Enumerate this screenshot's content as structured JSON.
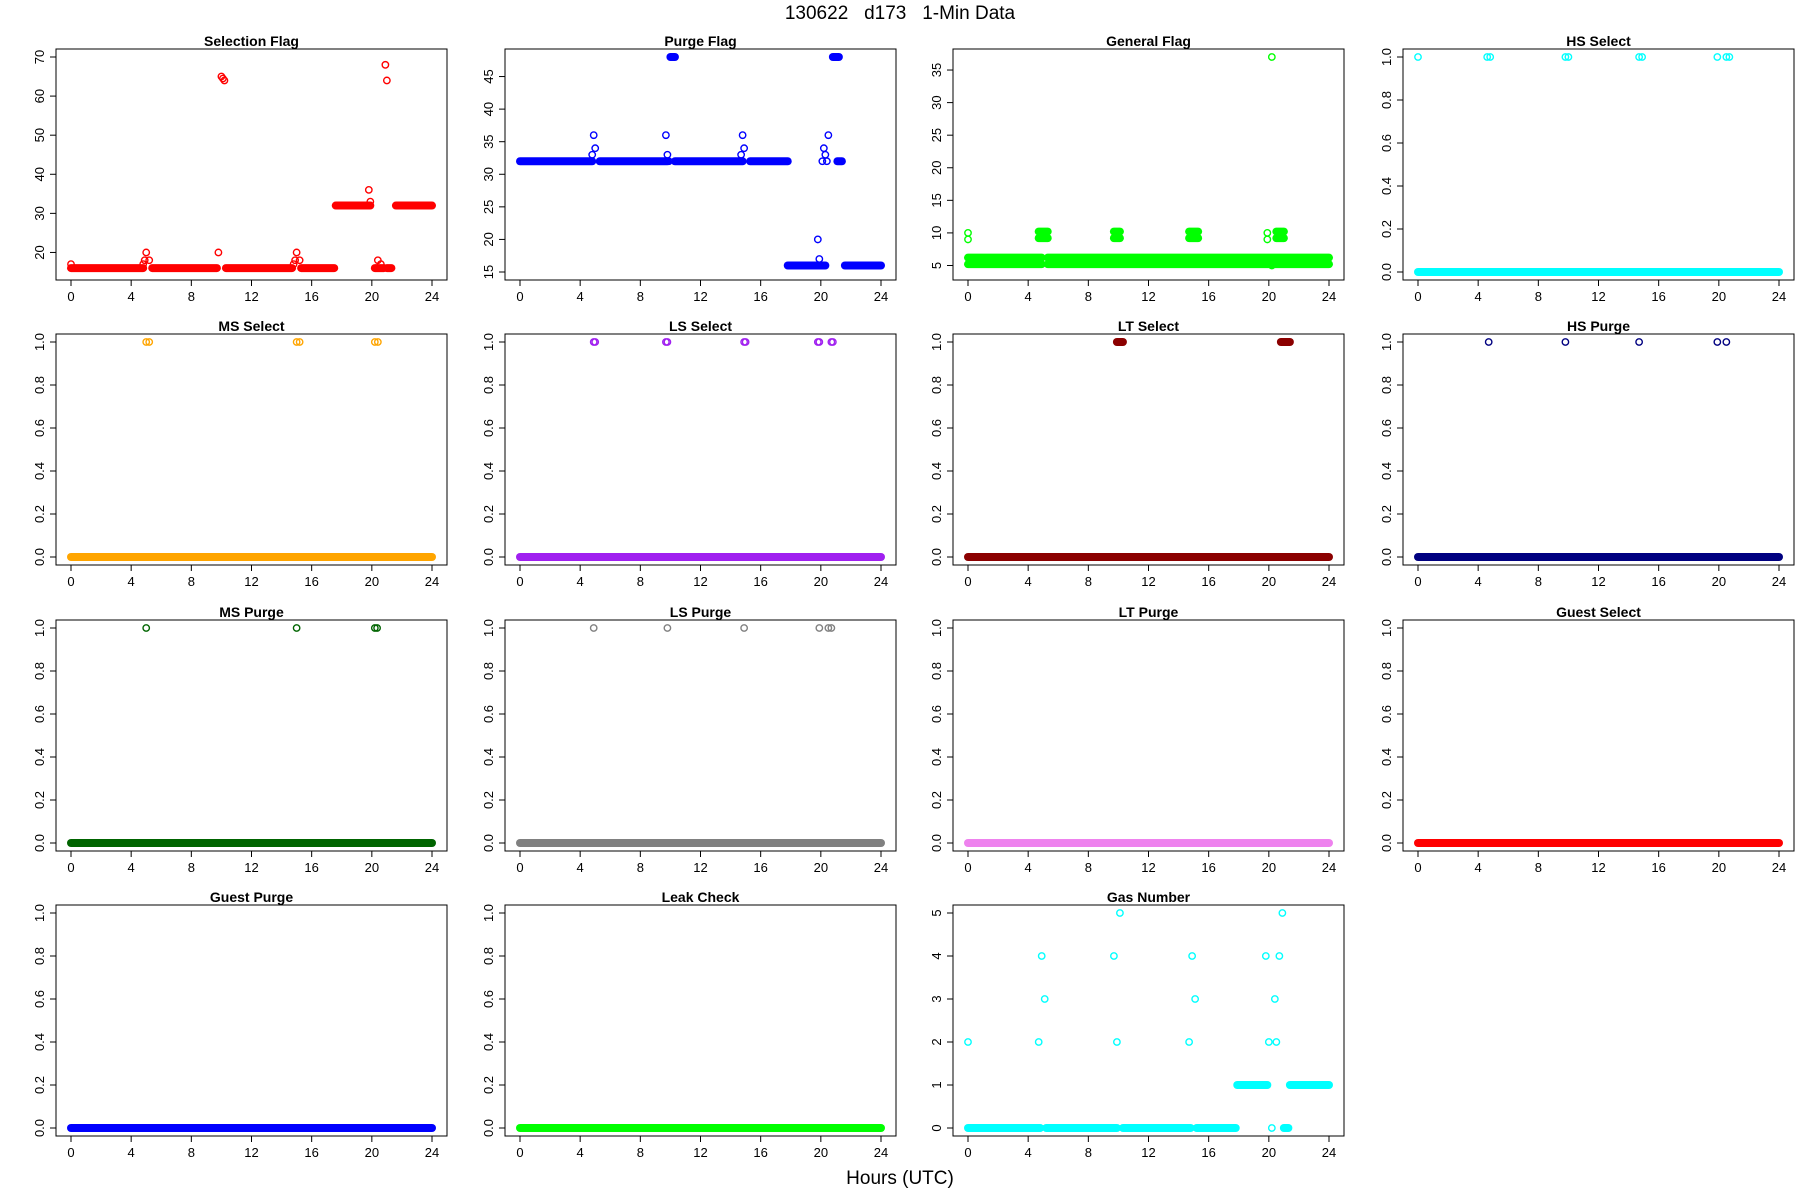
{
  "page": {
    "title": "130622   d173   1-Min Data",
    "xlabel": "Hours (UTC)"
  },
  "chart_data": [
    {
      "type": "scatter",
      "title": "Selection Flag",
      "color": "#ff0000",
      "xlim": [
        0,
        24
      ],
      "xticks": [
        0,
        4,
        8,
        12,
        16,
        20,
        24
      ],
      "ylim": [
        15,
        70
      ],
      "yticks": [
        20,
        30,
        40,
        50,
        60,
        70
      ],
      "baseline": [
        [
          0,
          4.8,
          16
        ],
        [
          5.4,
          9.7,
          16
        ],
        [
          10.3,
          14.7,
          16
        ],
        [
          15.3,
          17.5,
          16
        ],
        [
          17.6,
          19.9,
          32
        ],
        [
          20.2,
          20.8,
          16
        ],
        [
          21.0,
          21.3,
          16
        ],
        [
          21.6,
          24,
          32
        ]
      ],
      "points": [
        [
          0,
          17
        ],
        [
          4.8,
          17
        ],
        [
          4.9,
          18
        ],
        [
          5.0,
          20
        ],
        [
          5.2,
          18
        ],
        [
          9.8,
          20
        ],
        [
          10.0,
          65
        ],
        [
          10.1,
          64.5
        ],
        [
          10.2,
          64
        ],
        [
          14.8,
          17
        ],
        [
          14.9,
          18
        ],
        [
          15.0,
          20
        ],
        [
          15.2,
          18
        ],
        [
          19.8,
          36
        ],
        [
          19.9,
          33
        ],
        [
          20.3,
          16
        ],
        [
          20.4,
          18
        ],
        [
          20.6,
          17
        ],
        [
          20.9,
          68
        ],
        [
          21.0,
          64
        ]
      ]
    },
    {
      "type": "scatter",
      "title": "Purge Flag",
      "color": "#0000ff",
      "xlim": [
        0,
        24
      ],
      "xticks": [
        0,
        4,
        8,
        12,
        16,
        20,
        24
      ],
      "ylim": [
        15,
        48
      ],
      "yticks": [
        15,
        20,
        25,
        30,
        35,
        40,
        45
      ],
      "baseline": [
        [
          0,
          4.8,
          32
        ],
        [
          5.3,
          9.8,
          32
        ],
        [
          10.3,
          14.8,
          32
        ],
        [
          15.3,
          17.8,
          32
        ],
        [
          17.8,
          19.6,
          16
        ],
        [
          19.6,
          20.3,
          16
        ],
        [
          21.1,
          21.4,
          32
        ],
        [
          21.6,
          24,
          16
        ],
        [
          10.0,
          10.3,
          48
        ],
        [
          20.8,
          21.2,
          48
        ]
      ],
      "points": [
        [
          4.8,
          33
        ],
        [
          4.9,
          36
        ],
        [
          5.0,
          34
        ],
        [
          9.7,
          36
        ],
        [
          9.8,
          33
        ],
        [
          9.9,
          32
        ],
        [
          14.7,
          33
        ],
        [
          14.8,
          36
        ],
        [
          14.9,
          34
        ],
        [
          19.8,
          20
        ],
        [
          19.9,
          17
        ],
        [
          20.1,
          32
        ],
        [
          20.2,
          34
        ],
        [
          20.3,
          33
        ],
        [
          20.5,
          36
        ],
        [
          20.4,
          32
        ]
      ]
    },
    {
      "type": "scatter",
      "title": "General Flag",
      "color": "#00ff00",
      "xlim": [
        0,
        24
      ],
      "xticks": [
        0,
        4,
        8,
        12,
        16,
        20,
        24
      ],
      "ylim": [
        4,
        37
      ],
      "yticks": [
        5,
        10,
        15,
        20,
        25,
        30,
        35
      ],
      "baseline": [
        [
          0,
          4.9,
          5.2
        ],
        [
          0,
          4.9,
          6.2
        ],
        [
          5.3,
          24,
          5.2
        ],
        [
          5.3,
          24,
          6.2
        ]
      ],
      "clusters": [
        [
          4.7,
          5.3,
          9.2
        ],
        [
          4.7,
          5.3,
          10.2
        ],
        [
          9.7,
          10.1,
          9.2
        ],
        [
          9.7,
          10.1,
          10.2
        ],
        [
          14.7,
          15.3,
          9.2
        ],
        [
          14.7,
          15.3,
          10.2
        ],
        [
          20.5,
          21.0,
          9.2
        ],
        [
          20.5,
          21.0,
          10.2
        ]
      ],
      "points": [
        [
          0,
          10
        ],
        [
          0,
          9
        ],
        [
          19.9,
          10
        ],
        [
          19.9,
          9
        ],
        [
          20.2,
          37
        ],
        [
          20.2,
          6
        ],
        [
          20.2,
          5
        ]
      ]
    },
    {
      "type": "scatter",
      "title": "HS Select",
      "color": "#00ffff",
      "xlim": [
        0,
        24
      ],
      "xticks": [
        0,
        4,
        8,
        12,
        16,
        20,
        24
      ],
      "ylim": [
        0,
        1
      ],
      "yticks": [
        0.0,
        0.2,
        0.4,
        0.6,
        0.8,
        1.0
      ],
      "baseline": [
        [
          0,
          24,
          0
        ]
      ],
      "points": [
        [
          0,
          1
        ],
        [
          4.6,
          1
        ],
        [
          4.8,
          1
        ],
        [
          9.8,
          1
        ],
        [
          10.0,
          1
        ],
        [
          14.7,
          1
        ],
        [
          14.9,
          1
        ],
        [
          19.9,
          1
        ],
        [
          20.5,
          1
        ],
        [
          20.7,
          1
        ]
      ]
    },
    {
      "type": "scatter",
      "title": "MS Select",
      "color": "#ffa500",
      "xlim": [
        0,
        24
      ],
      "xticks": [
        0,
        4,
        8,
        12,
        16,
        20,
        24
      ],
      "ylim": [
        0,
        1
      ],
      "yticks": [
        0.0,
        0.2,
        0.4,
        0.6,
        0.8,
        1.0
      ],
      "baseline": [
        [
          0,
          24,
          0
        ]
      ],
      "points": [
        [
          5.0,
          1
        ],
        [
          5.2,
          1
        ],
        [
          15.0,
          1
        ],
        [
          15.2,
          1
        ],
        [
          20.2,
          1
        ],
        [
          20.4,
          1
        ]
      ]
    },
    {
      "type": "scatter",
      "title": "LS Select",
      "color": "#a020f0",
      "xlim": [
        0,
        24
      ],
      "xticks": [
        0,
        4,
        8,
        12,
        16,
        20,
        24
      ],
      "ylim": [
        0,
        1
      ],
      "yticks": [
        0.0,
        0.2,
        0.4,
        0.6,
        0.8,
        1.0
      ],
      "baseline": [
        [
          0,
          24,
          0
        ]
      ],
      "points": [
        [
          4.9,
          1
        ],
        [
          5.0,
          1
        ],
        [
          9.7,
          1
        ],
        [
          9.8,
          1
        ],
        [
          14.9,
          1
        ],
        [
          15.0,
          1
        ],
        [
          19.8,
          1
        ],
        [
          19.9,
          1
        ],
        [
          20.7,
          1
        ],
        [
          20.8,
          1
        ]
      ]
    },
    {
      "type": "scatter",
      "title": "LT Select",
      "color": "#8b0000",
      "xlim": [
        0,
        24
      ],
      "xticks": [
        0,
        4,
        8,
        12,
        16,
        20,
        24
      ],
      "ylim": [
        0,
        1
      ],
      "yticks": [
        0.0,
        0.2,
        0.4,
        0.6,
        0.8,
        1.0
      ],
      "baseline": [
        [
          0,
          24,
          0
        ]
      ],
      "clusters": [
        [
          9.9,
          10.3,
          1
        ],
        [
          20.8,
          21.4,
          1
        ]
      ],
      "points": []
    },
    {
      "type": "scatter",
      "title": "HS Purge",
      "color": "#000080",
      "xlim": [
        0,
        24
      ],
      "xticks": [
        0,
        4,
        8,
        12,
        16,
        20,
        24
      ],
      "ylim": [
        0,
        1
      ],
      "yticks": [
        0.0,
        0.2,
        0.4,
        0.6,
        0.8,
        1.0
      ],
      "baseline": [
        [
          0,
          24,
          0
        ]
      ],
      "points": [
        [
          4.7,
          1
        ],
        [
          9.8,
          1
        ],
        [
          14.7,
          1
        ],
        [
          19.9,
          1
        ],
        [
          20.5,
          1
        ]
      ]
    },
    {
      "type": "scatter",
      "title": "MS Purge",
      "color": "#006400",
      "xlim": [
        0,
        24
      ],
      "xticks": [
        0,
        4,
        8,
        12,
        16,
        20,
        24
      ],
      "ylim": [
        0,
        1
      ],
      "yticks": [
        0.0,
        0.2,
        0.4,
        0.6,
        0.8,
        1.0
      ],
      "baseline": [
        [
          0,
          24,
          0
        ]
      ],
      "points": [
        [
          5.0,
          1
        ],
        [
          15.0,
          1
        ],
        [
          20.2,
          1
        ],
        [
          20.35,
          1
        ]
      ]
    },
    {
      "type": "scatter",
      "title": "LS Purge",
      "color": "#808080",
      "xlim": [
        0,
        24
      ],
      "xticks": [
        0,
        4,
        8,
        12,
        16,
        20,
        24
      ],
      "ylim": [
        0,
        1
      ],
      "yticks": [
        0.0,
        0.2,
        0.4,
        0.6,
        0.8,
        1.0
      ],
      "baseline": [
        [
          0,
          24,
          0
        ]
      ],
      "points": [
        [
          4.9,
          1
        ],
        [
          9.8,
          1
        ],
        [
          14.9,
          1
        ],
        [
          19.9,
          1
        ],
        [
          20.5,
          1
        ],
        [
          20.7,
          1
        ]
      ]
    },
    {
      "type": "scatter",
      "title": "LT Purge",
      "color": "#ee82ee",
      "xlim": [
        0,
        24
      ],
      "xticks": [
        0,
        4,
        8,
        12,
        16,
        20,
        24
      ],
      "ylim": [
        0,
        1
      ],
      "yticks": [
        0.0,
        0.2,
        0.4,
        0.6,
        0.8,
        1.0
      ],
      "baseline": [
        [
          0,
          24,
          0
        ]
      ],
      "points": []
    },
    {
      "type": "scatter",
      "title": "Guest Select",
      "color": "#ff0000",
      "xlim": [
        0,
        24
      ],
      "xticks": [
        0,
        4,
        8,
        12,
        16,
        20,
        24
      ],
      "ylim": [
        0,
        1
      ],
      "yticks": [
        0.0,
        0.2,
        0.4,
        0.6,
        0.8,
        1.0
      ],
      "baseline": [
        [
          0,
          24,
          0
        ]
      ],
      "points": []
    },
    {
      "type": "scatter",
      "title": "Guest Purge",
      "color": "#0000ff",
      "xlim": [
        0,
        24
      ],
      "xticks": [
        0,
        4,
        8,
        12,
        16,
        20,
        24
      ],
      "ylim": [
        0,
        1
      ],
      "yticks": [
        0.0,
        0.2,
        0.4,
        0.6,
        0.8,
        1.0
      ],
      "baseline": [
        [
          0,
          24,
          0
        ]
      ],
      "points": []
    },
    {
      "type": "scatter",
      "title": "Leak Check",
      "color": "#00ff00",
      "xlim": [
        0,
        24
      ],
      "xticks": [
        0,
        4,
        8,
        12,
        16,
        20,
        24
      ],
      "ylim": [
        0,
        1
      ],
      "yticks": [
        0.0,
        0.2,
        0.4,
        0.6,
        0.8,
        1.0
      ],
      "baseline": [
        [
          0,
          24,
          0
        ]
      ],
      "points": []
    },
    {
      "type": "scatter",
      "title": "Gas Number",
      "color": "#00ffff",
      "xlim": [
        0,
        24
      ],
      "xticks": [
        0,
        4,
        8,
        12,
        16,
        20,
        24
      ],
      "ylim": [
        0,
        5
      ],
      "yticks": [
        0,
        1,
        2,
        3,
        4,
        5
      ],
      "baseline": [
        [
          0,
          4.8,
          0
        ],
        [
          5.2,
          9.9,
          0
        ],
        [
          10.3,
          14.8,
          0
        ],
        [
          15.2,
          17.8,
          0
        ],
        [
          17.9,
          19.9,
          1
        ],
        [
          21.4,
          24,
          1
        ],
        [
          21.0,
          21.3,
          0
        ]
      ],
      "points": [
        [
          0,
          2
        ],
        [
          4.7,
          2
        ],
        [
          4.9,
          4
        ],
        [
          5.1,
          3
        ],
        [
          9.7,
          4
        ],
        [
          9.9,
          2
        ],
        [
          10.1,
          5
        ],
        [
          14.7,
          2
        ],
        [
          14.9,
          4
        ],
        [
          15.1,
          3
        ],
        [
          19.8,
          4
        ],
        [
          20.0,
          2
        ],
        [
          20.2,
          0
        ],
        [
          20.4,
          3
        ],
        [
          20.5,
          2
        ],
        [
          20.7,
          4
        ],
        [
          20.9,
          5
        ]
      ]
    }
  ]
}
